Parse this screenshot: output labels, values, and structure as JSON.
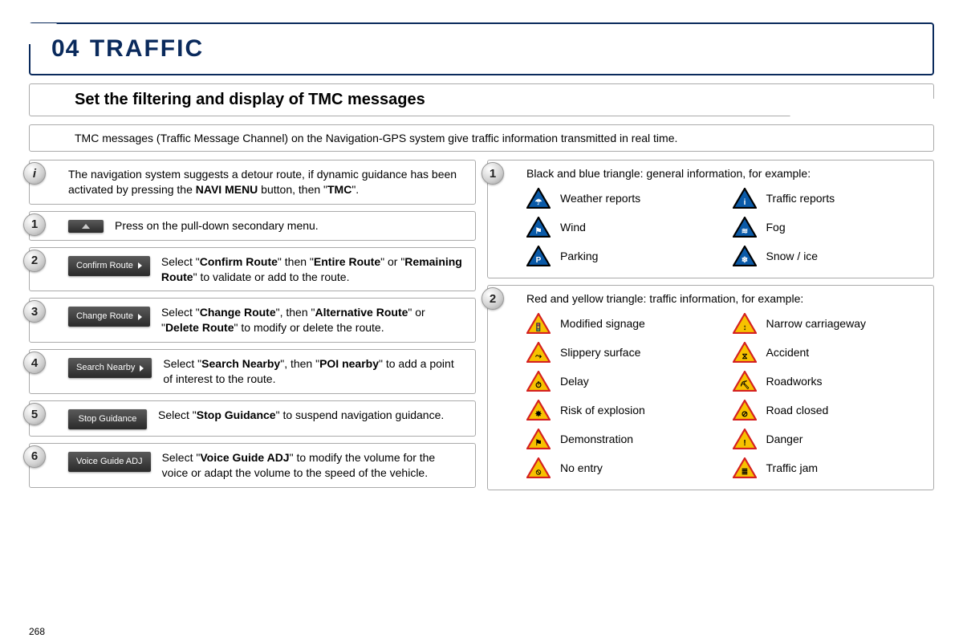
{
  "page_number": "268",
  "title": {
    "num": "04",
    "text": "TRAFFIC"
  },
  "subtitle": "Set the filtering and display of TMC messages",
  "intro": "TMC messages (Traffic Message Channel) on the Navigation-GPS system give traffic information transmitted in real time.",
  "colors": {
    "title_border": "#0a2a5c",
    "panel_border": "#aaaaaa",
    "btn_grad_top": "#5a5a5a",
    "btn_grad_bottom": "#2a2a2a",
    "blue_tri_fill": "#0a5aa8",
    "blue_tri_border": "#000000",
    "yellow_tri_fill": "#f7c200",
    "yellow_tri_border": "#d42020"
  },
  "left": {
    "info": {
      "badge": "i",
      "pre": "The navigation system suggests a detour route, if dynamic guidance has been activated by pressing the ",
      "b1": "NAVI MENU",
      "mid": " button, then \"",
      "b2": "TMC",
      "post": "\"."
    },
    "steps": [
      {
        "n": "1",
        "btn": "",
        "icon": "up",
        "text": "Press on the pull-down secondary menu."
      },
      {
        "n": "2",
        "btn": "Confirm Route",
        "icon": "right",
        "html": "Select \"<b>Confirm Route</b>\" then \"<b>Entire Route</b>\" or \"<b>Remaining Route</b>\" to validate or add to the route."
      },
      {
        "n": "3",
        "btn": "Change Route",
        "icon": "right",
        "html": "Select \"<b>Change Route</b>\", then \"<b>Alternative Route</b>\" or \"<b>Delete Route</b>\" to modify or delete the route."
      },
      {
        "n": "4",
        "btn": "Search Nearby",
        "icon": "right",
        "html": "Select \"<b>Search Nearby</b>\", then \"<b>POI nearby</b>\" to add a point of interest to the route."
      },
      {
        "n": "5",
        "btn": "Stop Guidance",
        "icon": "none",
        "html": "Select \"<b>Stop Guidance</b>\" to suspend navigation guidance."
      },
      {
        "n": "6",
        "btn": "Voice Guide ADJ",
        "icon": "none",
        "html": "Select \"<b>Voice Guide ADJ</b>\" to modify the volume for the voice or adapt the volume to the speed of the vehicle."
      }
    ]
  },
  "right": {
    "groups": [
      {
        "n": "1",
        "intro": "Black and blue triangle: general information, for example:",
        "style": "blue",
        "items": [
          {
            "label": "Weather reports",
            "glyph": "☂"
          },
          {
            "label": "Traffic reports",
            "glyph": "i"
          },
          {
            "label": "Wind",
            "glyph": "⚑"
          },
          {
            "label": "Fog",
            "glyph": "≋"
          },
          {
            "label": "Parking",
            "glyph": "P"
          },
          {
            "label": "Snow / ice",
            "glyph": "❄"
          }
        ]
      },
      {
        "n": "2",
        "intro": "Red and yellow triangle: traffic information, for example:",
        "style": "yellow",
        "items": [
          {
            "label": "Modified signage",
            "glyph": "🚦"
          },
          {
            "label": "Narrow carriageway",
            "glyph": "↕"
          },
          {
            "label": "Slippery surface",
            "glyph": "⤳"
          },
          {
            "label": "Accident",
            "glyph": "⧖"
          },
          {
            "label": "Delay",
            "glyph": "⏱"
          },
          {
            "label": "Roadworks",
            "glyph": "⛏"
          },
          {
            "label": "Risk of explosion",
            "glyph": "✸"
          },
          {
            "label": "Road closed",
            "glyph": "⊘"
          },
          {
            "label": "Demonstration",
            "glyph": "⚑"
          },
          {
            "label": "Danger",
            "glyph": "!"
          },
          {
            "label": "No entry",
            "glyph": "⦸"
          },
          {
            "label": "Traffic jam",
            "glyph": "≣"
          }
        ]
      }
    ]
  }
}
